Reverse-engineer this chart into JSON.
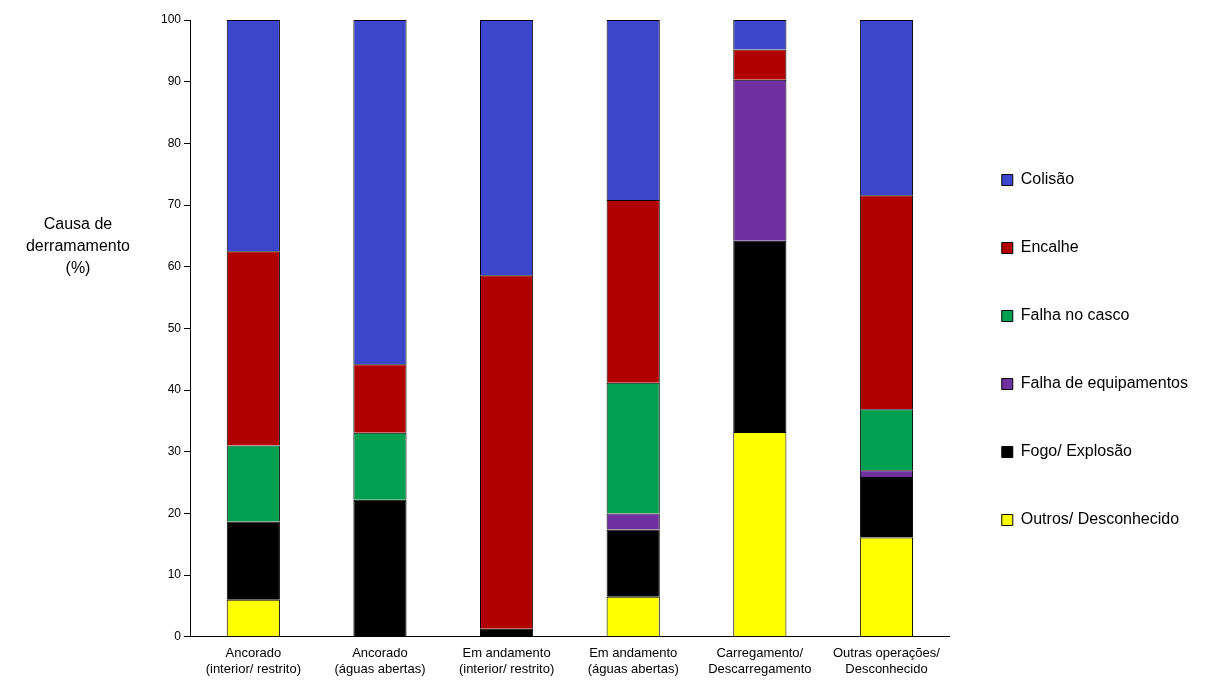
{
  "chart_data": {
    "type": "bar",
    "stacked": true,
    "ylabel": "Causa de derramamento (%)",
    "categories": [
      "Ancorado\n(interior/ restrito)",
      "Ancorado\n(águas abertas)",
      "Em andamento\n(interior/ restrito)",
      "Em andamento\n(águas abertas)",
      "Carregamento/\nDescarregamento",
      "Outras operações/\nDesconhecido"
    ],
    "series": [
      {
        "name": "Outros/ Desconhecido",
        "color": "#ffff00",
        "values": [
          6,
          0,
          0,
          6.5,
          33.2,
          16.1
        ]
      },
      {
        "name": "Fogo/ Explosão",
        "color": "#000000",
        "values": [
          12.7,
          22.2,
          1.3,
          10.9,
          31,
          9.8
        ]
      },
      {
        "name": "Falha de equipamentos",
        "color": "#7030a0",
        "values": [
          0,
          0,
          0,
          2.6,
          26.1,
          1.1
        ]
      },
      {
        "name": "Falha no casco",
        "color": "#00a050",
        "values": [
          12.3,
          10.9,
          0,
          21.2,
          0,
          9.9
        ]
      },
      {
        "name": "Encalhe",
        "color": "#b00000",
        "values": [
          31.5,
          11.1,
          57.3,
          29.6,
          4.9,
          34.7
        ]
      },
      {
        "name": "Colisão",
        "color": "#3c46cc",
        "values": [
          37.5,
          55.8,
          41.4,
          29.2,
          4.8,
          28.4
        ]
      }
    ],
    "ylim": [
      0,
      100
    ],
    "yticks": [
      0,
      10,
      20,
      30,
      40,
      50,
      60,
      70,
      80,
      90,
      100
    ],
    "grid": false,
    "legend": "right"
  }
}
